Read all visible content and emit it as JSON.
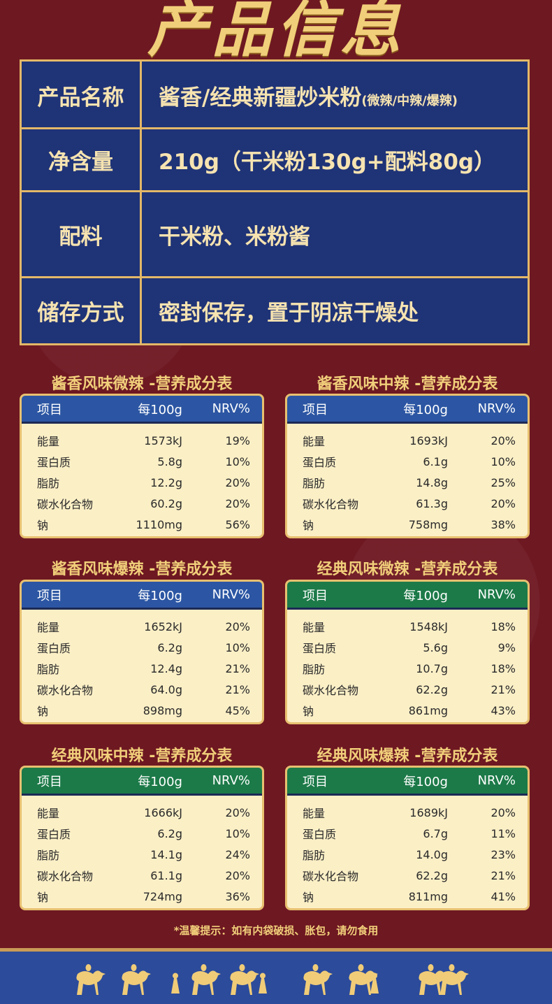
{
  "title": "产品信息",
  "info": [
    {
      "label": "产品名称",
      "value": "酱香/经典新疆炒米粉",
      "note": "(微辣/中辣/爆辣)"
    },
    {
      "label": "净含量",
      "value": "210g（干米粉130g+配料80g）",
      "note": ""
    },
    {
      "label": "配料",
      "value": "干米粉、米粉酱",
      "note": ""
    },
    {
      "label": "储存方式",
      "value": "密封保存，置于阴凉干燥处",
      "note": ""
    }
  ],
  "headers": [
    "项目",
    "每100g",
    "NRV%"
  ],
  "items": [
    "能量",
    "蛋白质",
    "脂肪",
    "碳水化合物",
    "钠"
  ],
  "tables": [
    {
      "title": "酱香风味微辣 -营养成分表",
      "color": "#2c56a3",
      "values": [
        [
          "1573kJ",
          "19%"
        ],
        [
          "5.8g",
          "10%"
        ],
        [
          "12.2g",
          "20%"
        ],
        [
          "60.2g",
          "20%"
        ],
        [
          "1110mg",
          "56%"
        ]
      ]
    },
    {
      "title": "酱香风味中辣 -营养成分表",
      "color": "#2c56a3",
      "values": [
        [
          "1693kJ",
          "20%"
        ],
        [
          "6.1g",
          "10%"
        ],
        [
          "14.8g",
          "25%"
        ],
        [
          "61.3g",
          "20%"
        ],
        [
          "758mg",
          "38%"
        ]
      ]
    },
    {
      "title": "酱香风味爆辣 -营养成分表",
      "color": "#2c56a3",
      "values": [
        [
          "1652kJ",
          "20%"
        ],
        [
          "6.2g",
          "10%"
        ],
        [
          "12.4g",
          "21%"
        ],
        [
          "64.0g",
          "21%"
        ],
        [
          "898mg",
          "45%"
        ]
      ]
    },
    {
      "title": "经典风味微辣 -营养成分表",
      "color": "#1c7a48",
      "values": [
        [
          "1548kJ",
          "18%"
        ],
        [
          "5.6g",
          "9%"
        ],
        [
          "10.7g",
          "18%"
        ],
        [
          "62.2g",
          "21%"
        ],
        [
          "861mg",
          "43%"
        ]
      ]
    },
    {
      "title": "经典风味中辣 -营养成分表",
      "color": "#1c7a48",
      "values": [
        [
          "1666kJ",
          "20%"
        ],
        [
          "6.2g",
          "10%"
        ],
        [
          "14.1g",
          "24%"
        ],
        [
          "61.1g",
          "20%"
        ],
        [
          "724mg",
          "36%"
        ]
      ]
    },
    {
      "title": "经典风味爆辣 -营养成分表",
      "color": "#1c7a48",
      "values": [
        [
          "1689kJ",
          "20%"
        ],
        [
          "6.7g",
          "11%"
        ],
        [
          "14.0g",
          "23%"
        ],
        [
          "62.2g",
          "21%"
        ],
        [
          "811mg",
          "41%"
        ]
      ]
    }
  ],
  "note": "*温馨提示：如有内袋破损、胀包，请勿食用"
}
